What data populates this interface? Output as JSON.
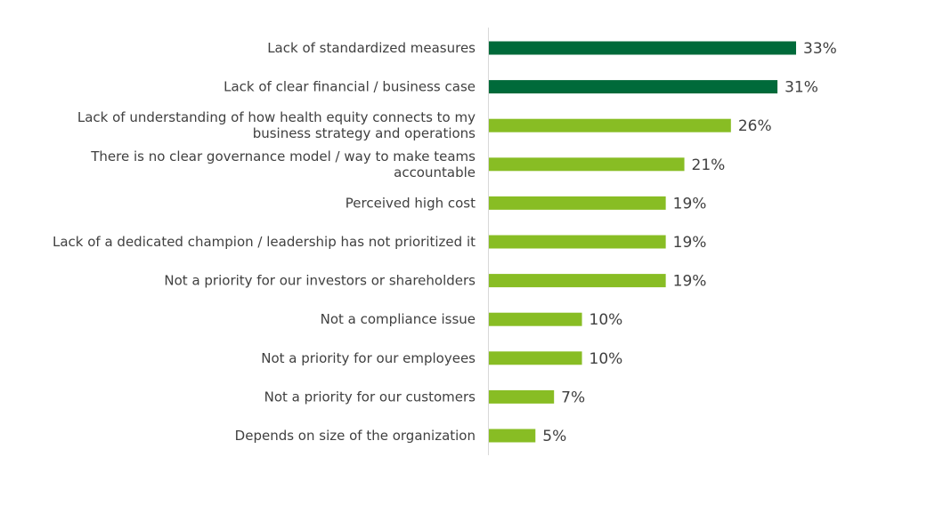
{
  "chart_data": {
    "type": "bar",
    "orientation": "horizontal",
    "categories": [
      [
        "Lack of standardized measures"
      ],
      [
        "Lack of clear financial / business case"
      ],
      [
        "Lack of understanding of how health equity connects to my",
        "business strategy and operations"
      ],
      [
        "There is no clear governance model / way to make teams",
        "accountable"
      ],
      [
        "Perceived high cost"
      ],
      [
        "Lack of a dedicated champion / leadership has not prioritized it"
      ],
      [
        "Not a priority for our investors or shareholders"
      ],
      [
        "Not a compliance issue"
      ],
      [
        "Not a priority for our employees"
      ],
      [
        "Not a priority for our customers"
      ],
      [
        "Depends on size of the organization"
      ]
    ],
    "values": [
      33,
      31,
      26,
      21,
      19,
      19,
      19,
      10,
      10,
      7,
      5
    ],
    "value_labels": [
      "33%",
      "31%",
      "26%",
      "21%",
      "19%",
      "19%",
      "19%",
      "10%",
      "10%",
      "7%",
      "5%"
    ],
    "bar_colors": [
      "#006a3a",
      "#006a3a",
      "#88bd24",
      "#88bd24",
      "#88bd24",
      "#88bd24",
      "#88bd24",
      "#88bd24",
      "#88bd24",
      "#88bd24",
      "#88bd24"
    ],
    "axis_color": "#d9d9d9",
    "xlim": [
      0,
      33
    ],
    "title": "",
    "xlabel": "",
    "ylabel": "",
    "grid": false,
    "legend": false
  }
}
